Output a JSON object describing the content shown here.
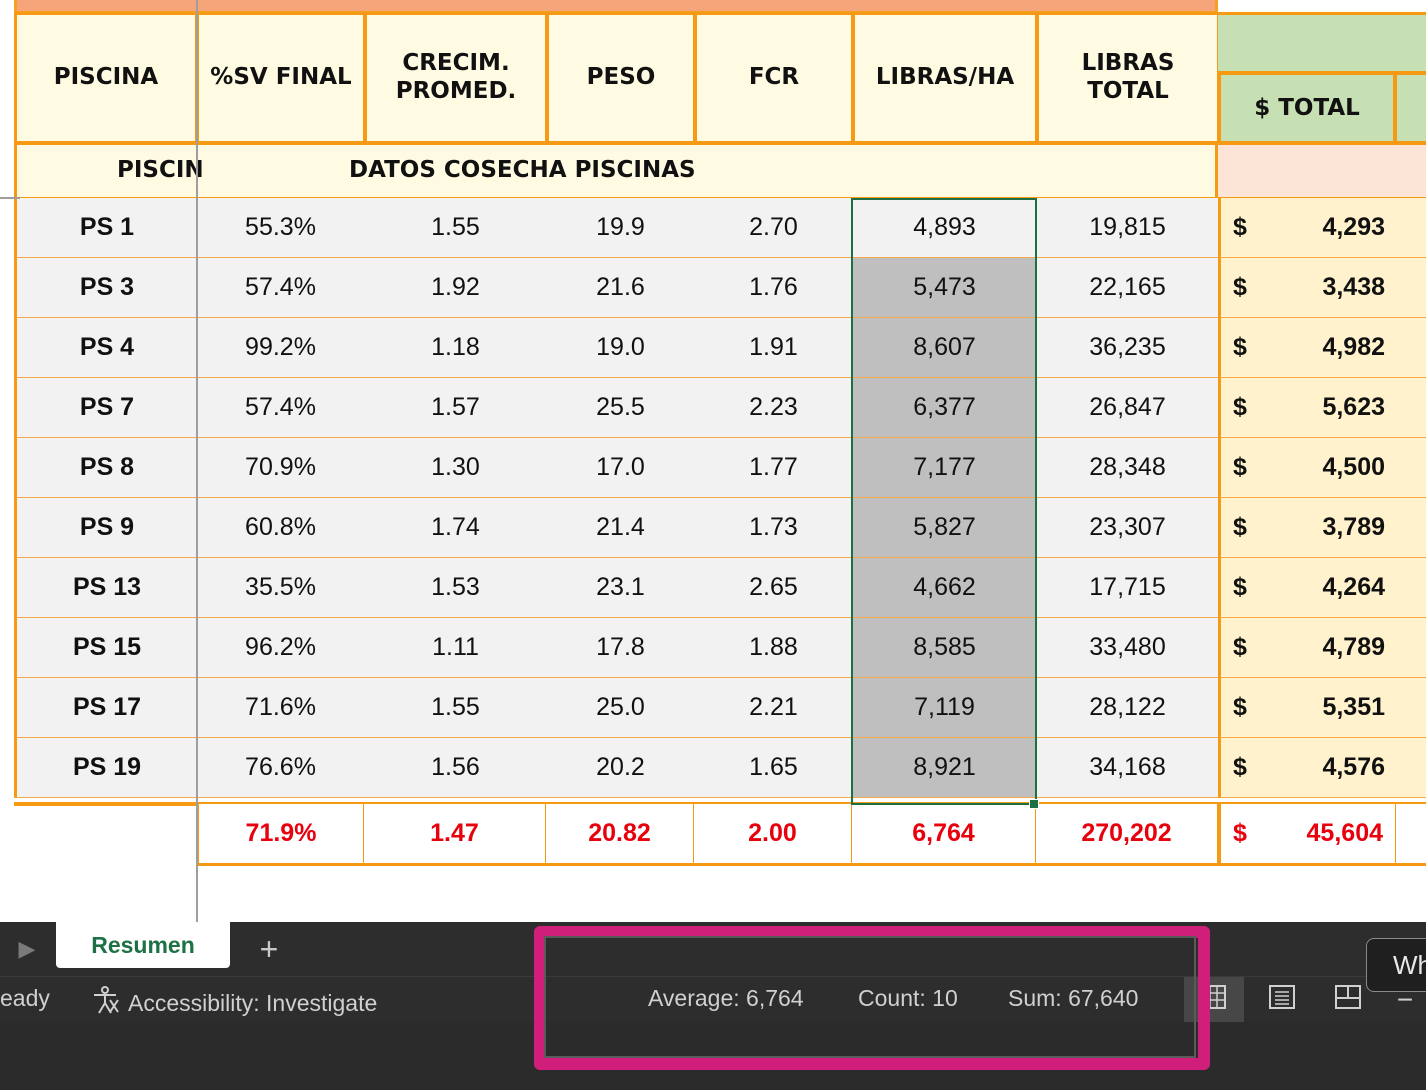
{
  "headers": {
    "piscina": "PISCINA",
    "sv_final": "%SV FINAL",
    "crecim_line1": "CRECIM.",
    "crecim_line2": "PROMED.",
    "peso": "PESO",
    "fcr": "FCR",
    "libras_ha": "LIBRAS/HA",
    "libras_total": "LIBRAS TOTAL",
    "total": "$ TOTAL",
    "total_partial": "'"
  },
  "subtitle": {
    "piscin": "PISCIN",
    "title": "DATOS COSECHA PISCINAS"
  },
  "rows": [
    {
      "name": "PS 1",
      "sv": "55.3%",
      "crecim": "1.55",
      "peso": "19.9",
      "fcr": "2.70",
      "libras_ha": "4,893",
      "libras_total": "19,815",
      "currency": "$",
      "total": "4,293"
    },
    {
      "name": "PS 3",
      "sv": "57.4%",
      "crecim": "1.92",
      "peso": "21.6",
      "fcr": "1.76",
      "libras_ha": "5,473",
      "libras_total": "22,165",
      "currency": "$",
      "total": "3,438"
    },
    {
      "name": "PS 4",
      "sv": "99.2%",
      "crecim": "1.18",
      "peso": "19.0",
      "fcr": "1.91",
      "libras_ha": "8,607",
      "libras_total": "36,235",
      "currency": "$",
      "total": "4,982"
    },
    {
      "name": "PS 7",
      "sv": "57.4%",
      "crecim": "1.57",
      "peso": "25.5",
      "fcr": "2.23",
      "libras_ha": "6,377",
      "libras_total": "26,847",
      "currency": "$",
      "total": "5,623"
    },
    {
      "name": "PS 8",
      "sv": "70.9%",
      "crecim": "1.30",
      "peso": "17.0",
      "fcr": "1.77",
      "libras_ha": "7,177",
      "libras_total": "28,348",
      "currency": "$",
      "total": "4,500"
    },
    {
      "name": "PS 9",
      "sv": "60.8%",
      "crecim": "1.74",
      "peso": "21.4",
      "fcr": "1.73",
      "libras_ha": "5,827",
      "libras_total": "23,307",
      "currency": "$",
      "total": "3,789"
    },
    {
      "name": "PS 13",
      "sv": "35.5%",
      "crecim": "1.53",
      "peso": "23.1",
      "fcr": "2.65",
      "libras_ha": "4,662",
      "libras_total": "17,715",
      "currency": "$",
      "total": "4,264"
    },
    {
      "name": "PS 15",
      "sv": "96.2%",
      "crecim": "1.11",
      "peso": "17.8",
      "fcr": "1.88",
      "libras_ha": "8,585",
      "libras_total": "33,480",
      "currency": "$",
      "total": "4,789"
    },
    {
      "name": "PS 17",
      "sv": "71.6%",
      "crecim": "1.55",
      "peso": "25.0",
      "fcr": "2.21",
      "libras_ha": "7,119",
      "libras_total": "28,122",
      "currency": "$",
      "total": "5,351"
    },
    {
      "name": "PS 19",
      "sv": "76.6%",
      "crecim": "1.56",
      "peso": "20.2",
      "fcr": "1.65",
      "libras_ha": "8,921",
      "libras_total": "34,168",
      "currency": "$",
      "total": "4,576"
    }
  ],
  "totals": {
    "sv": "71.9%",
    "crecim": "1.47",
    "peso": "20.82",
    "fcr": "2.00",
    "libras_ha": "6,764",
    "libras_total": "270,202",
    "currency": "$",
    "total": "45,604"
  },
  "tabs": {
    "active": "Resumen",
    "add": "+"
  },
  "status": {
    "ready": "eady",
    "accessibility": "Accessibility: Investigate",
    "average": "Average: 6,764",
    "count": "Count: 10",
    "sum": "Sum: 67,640"
  },
  "tooltip": "Wh",
  "colors": {
    "grid_orange": "#f59a12",
    "header_fill": "#fffbe3",
    "green_header": "#c6e0b4",
    "money_fill": "#fff2cc",
    "selection_fill": "#bfbfbf",
    "selection_border": "#1e6f43",
    "total_red": "#e8000c",
    "highlight_magenta": "#d01f7a"
  }
}
